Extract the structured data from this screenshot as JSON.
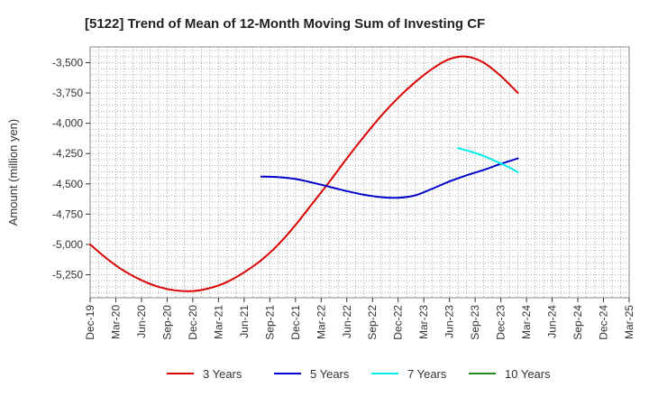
{
  "chart_data": {
    "type": "line",
    "title": "[5122]  Trend of Mean of 12-Month Moving Sum of Investing CF",
    "xlabel": "",
    "ylabel": "Amount (million yen)",
    "ylim": [
      -5440,
      -3370
    ],
    "yticks": [
      -3500,
      -3750,
      -4000,
      -4250,
      -4500,
      -4750,
      -5000,
      -5250
    ],
    "ytick_labels": [
      "-3,500",
      "-3,750",
      "-4,000",
      "-4,250",
      "-4,500",
      "-4,750",
      "-5,000",
      "-5,250"
    ],
    "x_labels": [
      "Dec-19",
      "Mar-20",
      "Jun-20",
      "Sep-20",
      "Dec-20",
      "Mar-21",
      "Jun-21",
      "Sep-21",
      "Dec-21",
      "Mar-22",
      "Jun-22",
      "Sep-22",
      "Dec-22",
      "Mar-23",
      "Jun-23",
      "Sep-23",
      "Dec-23",
      "Mar-24",
      "Jun-24",
      "Sep-24",
      "Dec-24",
      "Mar-25"
    ],
    "x_range": [
      0,
      63
    ],
    "series": [
      {
        "name": "3 Years",
        "color": "#dd0000",
        "x": [
          0,
          2,
          4,
          6,
          8,
          10,
          12,
          14,
          16,
          18,
          20,
          22,
          24,
          26,
          28,
          30,
          32,
          34,
          36,
          38,
          40,
          42,
          44,
          46,
          48,
          50
        ],
        "values": [
          -5000,
          -5120,
          -5220,
          -5295,
          -5350,
          -5380,
          -5385,
          -5360,
          -5310,
          -5230,
          -5130,
          -5000,
          -4840,
          -4660,
          -4480,
          -4290,
          -4110,
          -3940,
          -3790,
          -3660,
          -3550,
          -3470,
          -3450,
          -3500,
          -3610,
          -3750
        ]
      },
      {
        "name": "5 Years",
        "color": "#0000cc",
        "x": [
          20,
          22,
          24,
          26,
          28,
          30,
          32,
          34,
          36,
          38,
          40,
          42,
          44,
          46,
          48,
          50
        ],
        "values": [
          -4440,
          -4445,
          -4460,
          -4490,
          -4525,
          -4560,
          -4590,
          -4610,
          -4615,
          -4595,
          -4540,
          -4480,
          -4430,
          -4385,
          -4335,
          -4290
        ]
      },
      {
        "name": "7 Years",
        "color": "#00eeee",
        "x": [
          43,
          45,
          47,
          49,
          50
        ],
        "values": [
          -4205,
          -4245,
          -4300,
          -4365,
          -4405
        ]
      },
      {
        "name": "10 Years",
        "color": "#228b22",
        "x": [],
        "values": []
      }
    ],
    "legend_position": "bottom",
    "grid": true
  }
}
